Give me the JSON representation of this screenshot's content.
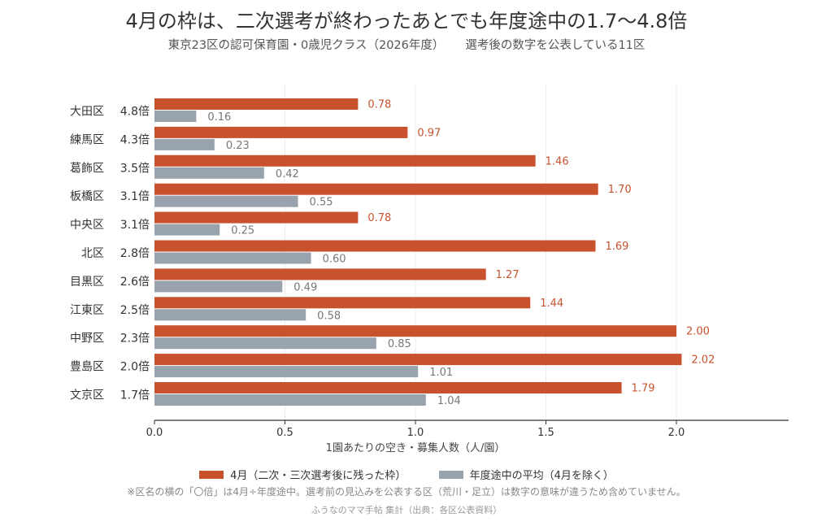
{
  "title": "4月の枠は、二次選考が終わったあとでも年度途中の1.7〜4.8倍",
  "subtitle_left": "東京23区の認可保育園・0歳児クラス（2026年度）",
  "subtitle_right": "選考後の数字を公表している11区",
  "note": "※区名の横の「〇倍」は4月÷年度途中。選考前の見込みを公表する区（荒川・足立）は数字の意味が違うため含めていません。",
  "source": "ふうなのママ手帖 集計（出典：各区公表資料）",
  "colors": {
    "april": "#c8522e",
    "average": "#99a3ad"
  },
  "chart_data": {
    "type": "bar",
    "orientation": "horizontal",
    "categories": [
      "大田区",
      "練馬区",
      "葛飾区",
      "板橋区",
      "中央区",
      "北区",
      "目黒区",
      "江東区",
      "中野区",
      "豊島区",
      "文京区"
    ],
    "ratio_labels": [
      "4.8倍",
      "4.3倍",
      "3.5倍",
      "3.1倍",
      "3.1倍",
      "2.8倍",
      "2.6倍",
      "2.5倍",
      "2.3倍",
      "2.0倍",
      "1.7倍"
    ],
    "series": [
      {
        "name": "4月（二次・三次選考後に残った枠）",
        "values": [
          0.78,
          0.97,
          1.46,
          1.7,
          0.78,
          1.69,
          1.27,
          1.44,
          2.0,
          2.02,
          1.79
        ]
      },
      {
        "name": "年度途中の平均（4月を除く）",
        "values": [
          0.16,
          0.23,
          0.42,
          0.55,
          0.25,
          0.6,
          0.49,
          0.58,
          0.85,
          1.01,
          1.04
        ]
      }
    ],
    "xlabel": "1園あたりの空き・募集人数（人/園）",
    "xlim": [
      0,
      2.43
    ],
    "xticks": [
      "0.0",
      "0.5",
      "1.0",
      "1.5",
      "2.0"
    ],
    "grid": "vertical",
    "legend": "bottom"
  }
}
